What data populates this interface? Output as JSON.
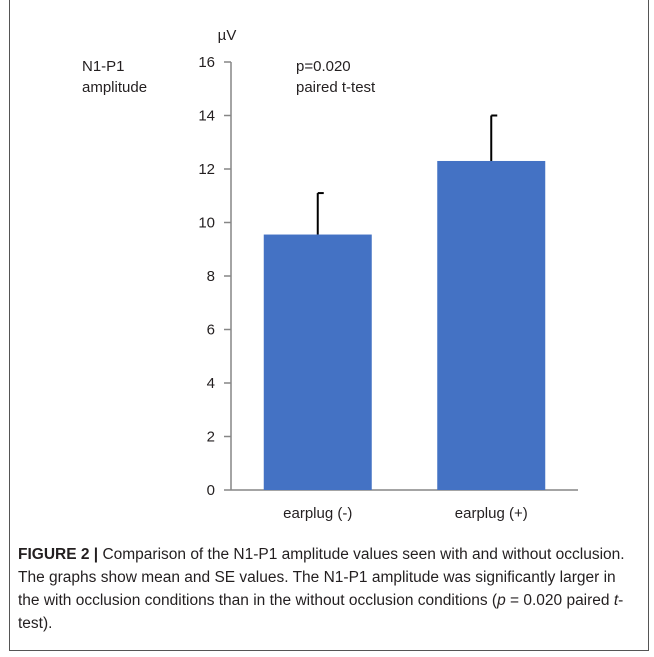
{
  "chart_data": {
    "type": "bar",
    "categories": [
      "earplug (-)",
      "earplug (+)"
    ],
    "values": [
      9.55,
      12.3
    ],
    "errors": [
      1.55,
      1.7
    ],
    "ylim": [
      0,
      16
    ],
    "yticks": [
      0,
      2,
      4,
      6,
      8,
      10,
      12,
      14,
      16
    ],
    "ylabel": "N1-P1 amplitude",
    "ylabel_line1": "N1-P1",
    "ylabel_line2": "amplitude",
    "unit": "µV",
    "annotation_line1": "p=0.020",
    "annotation_line2": "paired t-test",
    "bar_color": "#4472c4",
    "grid": false
  },
  "caption": {
    "label": "FIGURE 2 |",
    "text_a": " Comparison of the N1-P1 amplitude values seen with and without occlusion. The graphs show mean and SE values. The N1-P1 amplitude was significantly larger in the with occlusion conditions than in the without occlusion conditions (",
    "p_symbol": "p",
    "text_b": " = 0.020 paired ",
    "t_symbol": "t",
    "text_c": "-test)."
  }
}
